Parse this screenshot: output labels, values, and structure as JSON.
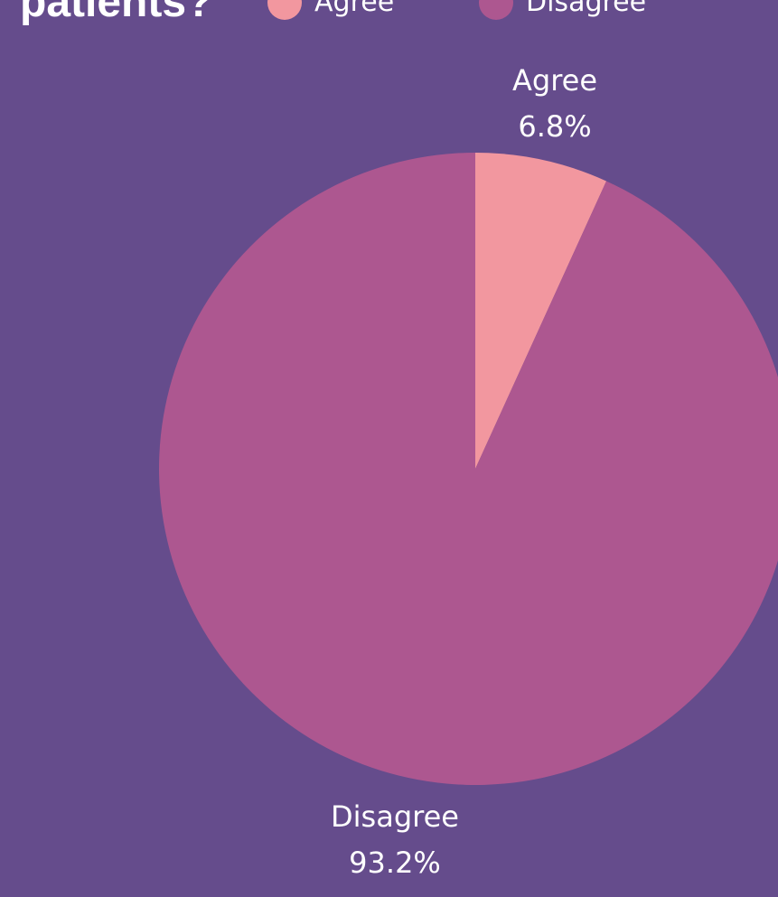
{
  "background_color": "#654C8C",
  "chart_data": {
    "type": "pie",
    "title": "patients?",
    "categories": [
      "Agree",
      "Disagree"
    ],
    "values": [
      6.8,
      93.2
    ],
    "value_labels": [
      "6.8%",
      "93.2%"
    ],
    "colors": [
      "#F2979F",
      "#AD5790"
    ],
    "legend": {
      "placement": "top",
      "entries": [
        "Agree",
        "Disagree"
      ]
    },
    "start_angle_deg": 0,
    "direction": "clockwise"
  }
}
